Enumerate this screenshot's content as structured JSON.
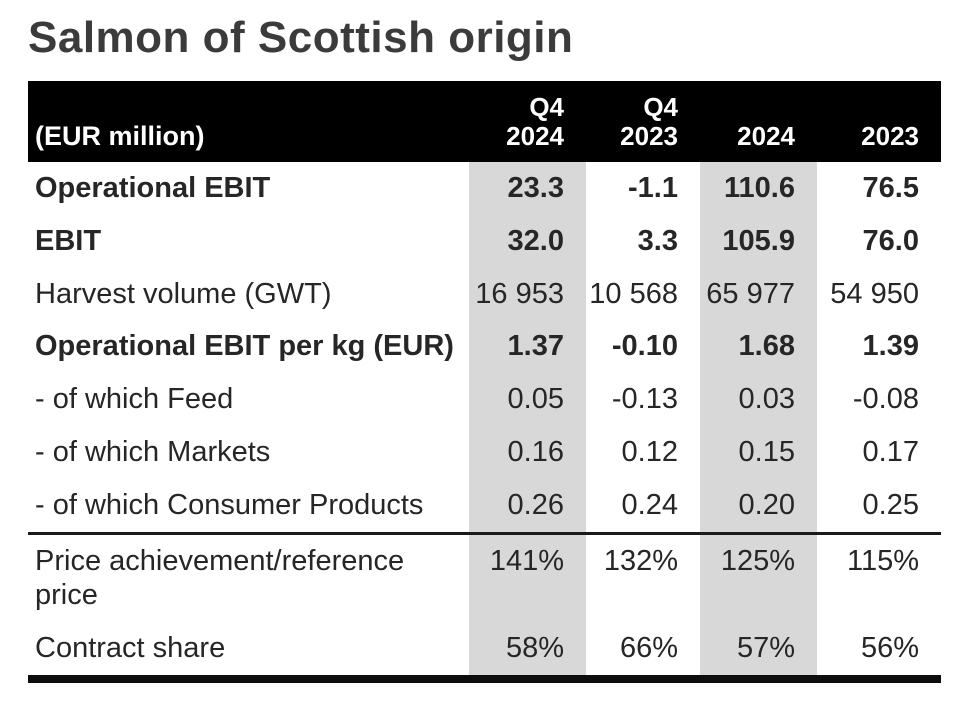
{
  "page": {
    "title": "Salmon of Scottish origin"
  },
  "table": {
    "unit_label": "(EUR million)",
    "columns": [
      {
        "label_line1": "Q4",
        "label_line2": "2024",
        "highlighted": true
      },
      {
        "label_line1": "Q4",
        "label_line2": "2023",
        "highlighted": false
      },
      {
        "label_line1": "",
        "label_line2": "2024",
        "highlighted": true
      },
      {
        "label_line1": "",
        "label_line2": "2023",
        "highlighted": false
      }
    ],
    "rows": [
      {
        "label": "Operational EBIT",
        "bold": true,
        "separator_after": false,
        "values": [
          "23.3",
          "-1.1",
          "110.6",
          "76.5"
        ]
      },
      {
        "label": "EBIT",
        "bold": true,
        "separator_after": false,
        "values": [
          "32.0",
          "3.3",
          "105.9",
          "76.0"
        ]
      },
      {
        "label": "Harvest volume (GWT)",
        "bold": false,
        "separator_after": false,
        "values": [
          "16 953",
          "10 568",
          "65 977",
          "54 950"
        ]
      },
      {
        "label": "Operational EBIT per kg (EUR)",
        "bold": true,
        "separator_after": false,
        "values": [
          "1.37",
          "-0.10",
          "1.68",
          "1.39"
        ]
      },
      {
        "label": "- of which Feed",
        "bold": false,
        "separator_after": false,
        "values": [
          "0.05",
          "-0.13",
          "0.03",
          "-0.08"
        ]
      },
      {
        "label": "- of which Markets",
        "bold": false,
        "separator_after": false,
        "values": [
          "0.16",
          "0.12",
          "0.15",
          "0.17"
        ]
      },
      {
        "label": "- of which Consumer Products",
        "bold": false,
        "separator_after": true,
        "values": [
          "0.26",
          "0.24",
          "0.20",
          "0.25"
        ]
      },
      {
        "label": "Price achievement/reference price",
        "bold": false,
        "separator_after": false,
        "values": [
          "141%",
          "132%",
          "125%",
          "115%"
        ]
      },
      {
        "label": "Contract share",
        "bold": false,
        "separator_after": false,
        "values": [
          "58%",
          "66%",
          "57%",
          "56%"
        ]
      }
    ],
    "colors": {
      "header_bg": "#000000",
      "header_text": "#ffffff",
      "highlight_column_bg": "#d8d8d8",
      "title_color": "#3b3b3b",
      "body_text": "#262626",
      "separator_line": "#1a1a1a"
    }
  }
}
